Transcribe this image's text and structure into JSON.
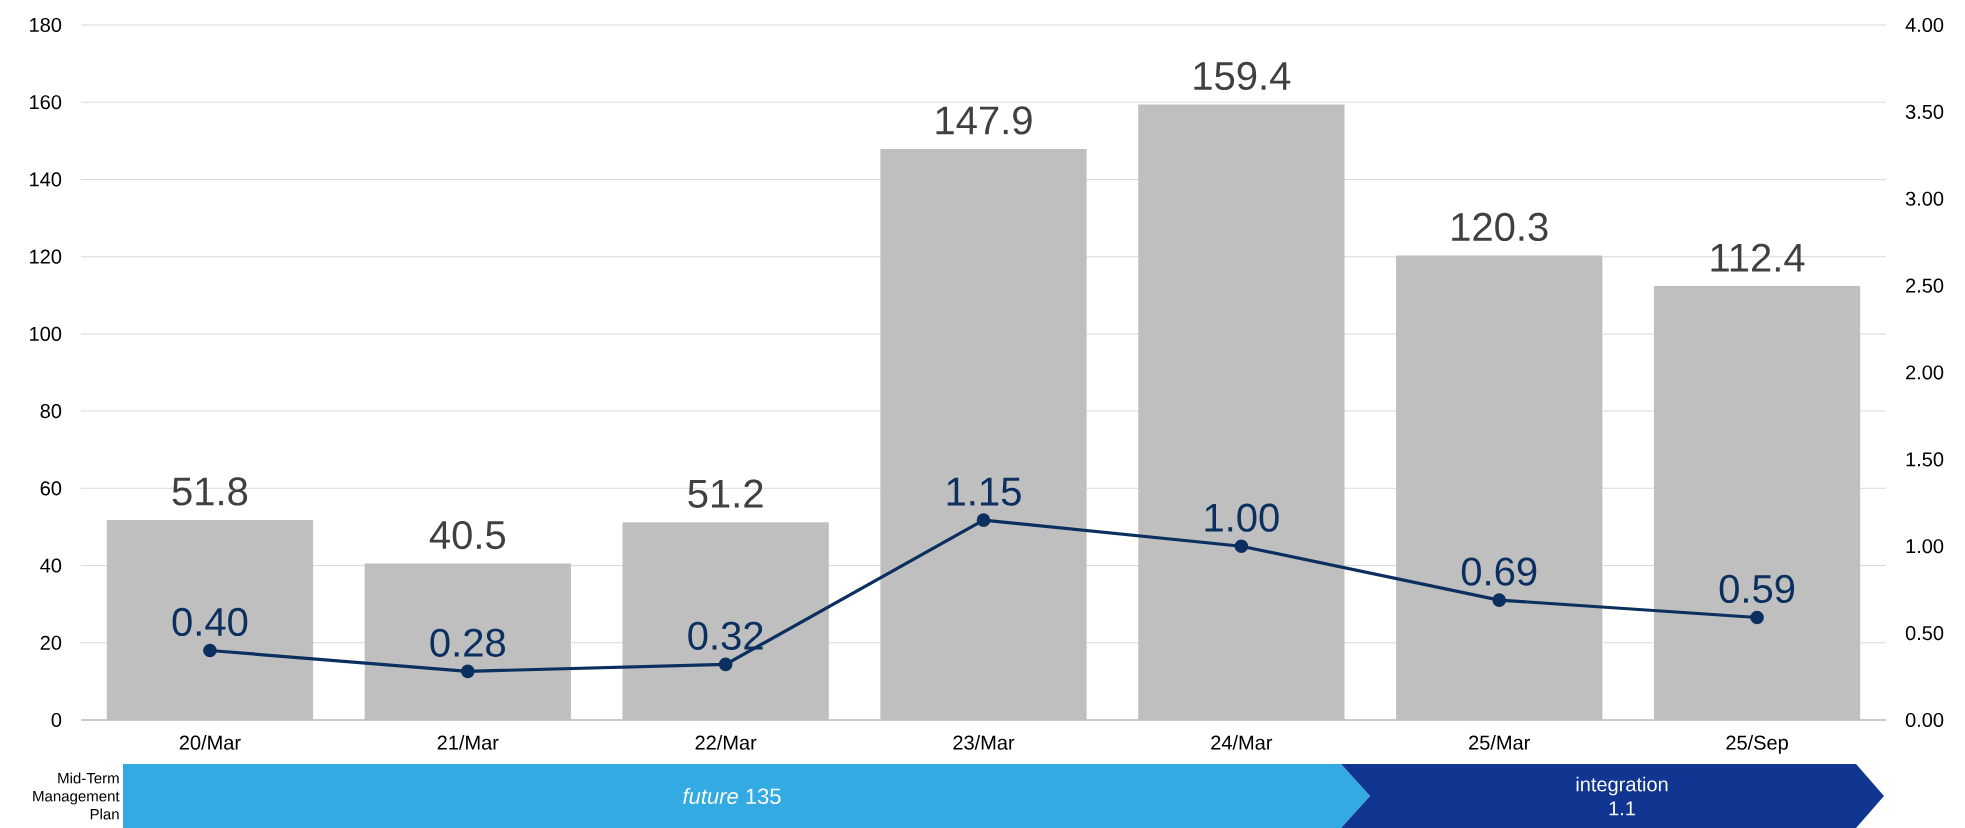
{
  "chart_data": {
    "type": "bar",
    "categories": [
      "20/Mar",
      "21/Mar",
      "22/Mar",
      "23/Mar",
      "24/Mar",
      "25/Mar",
      "25/Sep"
    ],
    "series": [
      {
        "color": "#bfbfbf",
        "values": [
          51.8,
          40.5,
          51.2,
          147.9,
          159.4,
          120.3,
          112.4
        ],
        "value_labels": [
          "51.8",
          "40.5",
          "51.2",
          "147.9",
          "159.4",
          "120.3",
          "112.4"
        ]
      },
      {
        "type": "line",
        "axis": "y2",
        "color": "#0b2f5e",
        "marker": "circle",
        "values": [
          0.4,
          0.28,
          0.32,
          1.15,
          1.0,
          0.69,
          0.59
        ],
        "value_labels": [
          "0.40",
          "0.28",
          "0.32",
          "1.15",
          "1.00",
          "0.69",
          "0.59"
        ]
      }
    ],
    "ylim": [
      0,
      180
    ],
    "yticks": [
      0,
      20,
      40,
      60,
      80,
      100,
      120,
      140,
      160,
      180
    ],
    "y2lim": [
      0,
      4
    ],
    "y2ticks": [
      {
        "value": 0,
        "label": "0.00"
      },
      {
        "value": 0.5,
        "label": "0.50"
      },
      {
        "value": 1,
        "label": "1.00"
      },
      {
        "value": 1.5,
        "label": "1.50"
      },
      {
        "value": 2,
        "label": "2.00"
      },
      {
        "value": 2.5,
        "label": "2.50"
      },
      {
        "value": 3,
        "label": "3.00"
      },
      {
        "value": 3.5,
        "label": "3.50"
      },
      {
        "value": 4,
        "label": "4.00"
      }
    ],
    "grid": "y",
    "annotations": [
      "Mid-Term Management Plan",
      "*future* 135",
      "integration 1.1"
    ]
  }
}
